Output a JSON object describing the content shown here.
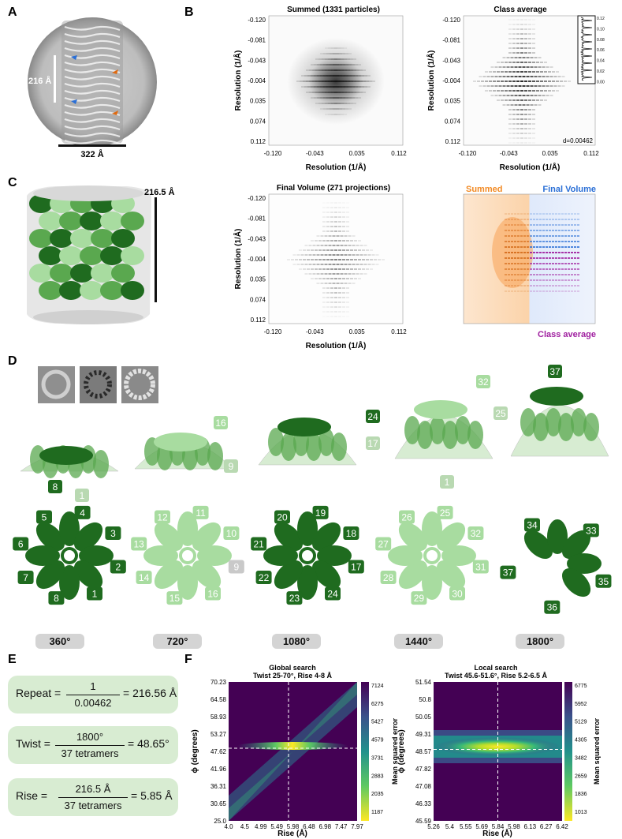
{
  "panel_letters": [
    "A",
    "B",
    "C",
    "D",
    "E",
    "F"
  ],
  "panelA": {
    "height_label": "216 Å",
    "width_label": "322 Å"
  },
  "panelB": {
    "summed_title": "Summed (1331 particles)",
    "class_title": "Class average",
    "final_title": "Final Volume (271 projections)",
    "overlay_labels": {
      "summed": "Summed",
      "final": "Final Volume",
      "class": "Class average"
    },
    "d_label": "d=0.00462",
    "y_ticks": [
      "-0.120",
      "-0.081",
      "-0.043",
      "-0.004",
      "0.035",
      "0.074",
      "0.112"
    ],
    "x_ticks": [
      "-0.120",
      "-0.043",
      "0.035",
      "0.112"
    ],
    "axis_label_x": "Resolution (1/Å)",
    "axis_label_y": "Resolution (1/Å)",
    "profile_ticks": [
      "0.12",
      "0.10",
      "0.08",
      "0.06",
      "0.04",
      "0.02",
      "0.00"
    ],
    "colors": {
      "summed": "#f28a24",
      "final": "#2a6fd6",
      "class": "#a020a0"
    }
  },
  "panelC": {
    "scale_label": "216.5 Å"
  },
  "panelD": {
    "degrees": [
      "360°",
      "720°",
      "1080°",
      "1440°",
      "1800°"
    ],
    "side_labels": [
      [
        "8",
        "1"
      ],
      [
        "16",
        "9"
      ],
      [
        "24",
        "17"
      ],
      [
        "32",
        "25",
        "1"
      ],
      [
        "37"
      ]
    ],
    "top_labels": [
      [
        "5",
        "4",
        "3",
        "2",
        "1",
        "8",
        "7",
        "6"
      ],
      [
        "12",
        "11",
        "10",
        "9",
        "16",
        "15",
        "14",
        "13"
      ],
      [
        "20",
        "19",
        "18",
        "17",
        "24",
        "23",
        "22",
        "21"
      ],
      [
        "26",
        "25",
        "32",
        "31",
        "30",
        "29",
        "28",
        "27"
      ],
      [
        "34",
        "33",
        "35",
        "36",
        "37"
      ]
    ],
    "colors": {
      "dark": "#1f6b1f",
      "mid": "#5aa84f",
      "light": "#a8dca0"
    }
  },
  "panelE": {
    "repeat": {
      "name": "Repeat =",
      "num": "1",
      "den": "0.00462",
      "result": "= 216.56 Å"
    },
    "twist": {
      "name": "Twist =",
      "num": "1800°",
      "den": "37 tetramers",
      "result": "= 48.65°"
    },
    "rise": {
      "name": "Rise =",
      "num": "216.5 Å",
      "den": "37 tetramers",
      "result": "= 5.85 Å"
    }
  },
  "chart_data": [
    {
      "type": "heatmap",
      "title": "Global search",
      "subtitle": "Twist 25-70°, Rise 4-8 Å",
      "xlabel": "Rise (Å)",
      "ylabel": "ϕ (degrees)",
      "colorbar_label": "Mean squared error",
      "x_ticks": [
        "4.0",
        "4.5",
        "4.99",
        "5.49",
        "5.98",
        "6.48",
        "6.98",
        "7.47",
        "7.97"
      ],
      "y_ticks": [
        "70.23",
        "64.58",
        "58.93",
        "53.27",
        "47.62",
        "41.96",
        "36.31",
        "30.65",
        "25.0"
      ],
      "colorbar_ticks": [
        "7124",
        "6275",
        "5427",
        "4579",
        "3731",
        "2883",
        "2035",
        "1187"
      ],
      "best_x": 5.85,
      "best_y": 48.65
    },
    {
      "type": "heatmap",
      "title": "Local search",
      "subtitle": "Twist 45.6-51.6°, Rise 5.2-6.5 Å",
      "xlabel": "Rise (Å)",
      "ylabel": "ϕ (degrees)",
      "colorbar_label": "Mean squared error",
      "x_ticks": [
        "5.26",
        "5.4",
        "5.55",
        "5.69",
        "5.84",
        "5.98",
        "6.13",
        "6.27",
        "6.42"
      ],
      "y_ticks": [
        "51.54",
        "50.8",
        "50.05",
        "49.31",
        "48.57",
        "47.82",
        "47.08",
        "46.33",
        "45.59"
      ],
      "colorbar_ticks": [
        "6775",
        "5952",
        "5129",
        "4305",
        "3482",
        "2659",
        "1836",
        "1013"
      ],
      "best_x": 5.84,
      "best_y": 48.65
    }
  ]
}
